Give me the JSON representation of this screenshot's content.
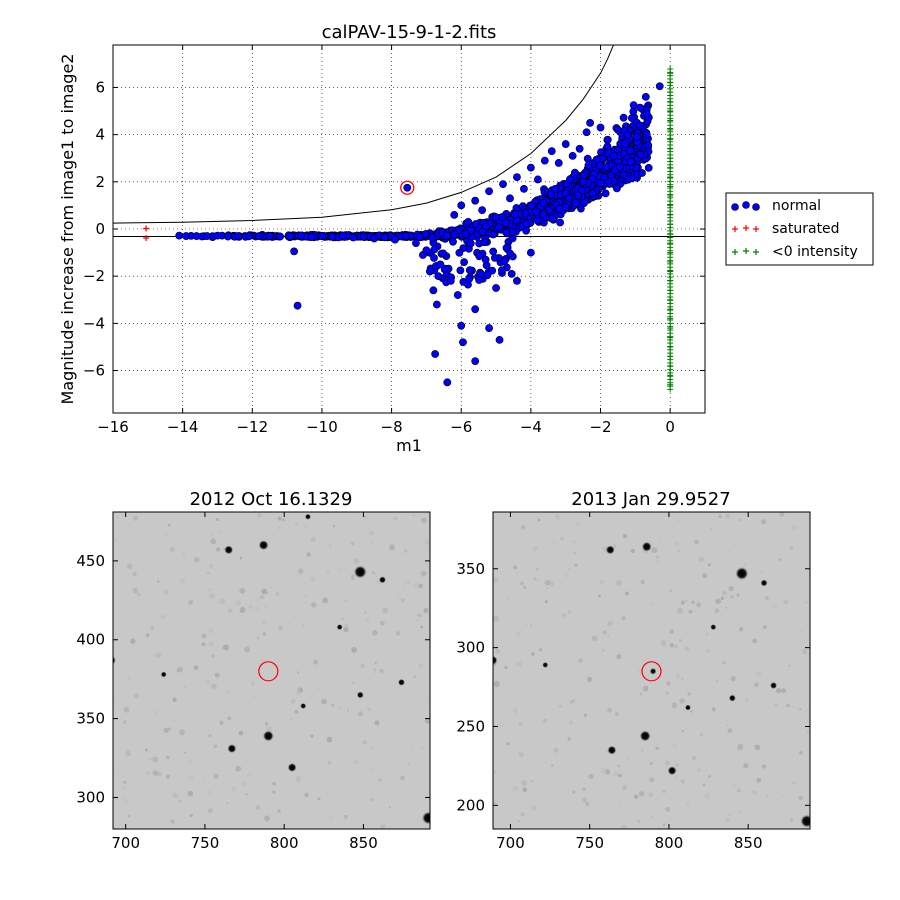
{
  "chart_data": [
    {
      "type": "scatter",
      "title": "calPAV-15-9-1-2.fits",
      "xlabel": "m1",
      "ylabel": "Magnitude increase from image1 to image2",
      "xlim": [
        -16,
        1
      ],
      "ylim": [
        -7.8,
        7.8
      ],
      "xticks": [
        -16,
        -14,
        -12,
        -10,
        -8,
        -6,
        -4,
        -2,
        0
      ],
      "yticks": [
        -6,
        -4,
        -2,
        0,
        2,
        4,
        6
      ],
      "xtick_labels": [
        "−16",
        "−14",
        "−12",
        "−10",
        "−8",
        "−6",
        "−4",
        "−2",
        "0"
      ],
      "ytick_labels": [
        "−6",
        "−4",
        "−2",
        "0",
        "2",
        "4",
        "6"
      ],
      "grid": true,
      "legend_placement": "outside-right",
      "series": [
        {
          "name": "normal",
          "marker": "filled-circle",
          "color": "#0000ff",
          "points": [
            [
              -14.1,
              -0.28
            ],
            [
              -13.9,
              -0.3
            ],
            [
              -13.6,
              -0.3
            ],
            [
              -13.3,
              -0.3
            ],
            [
              -13.0,
              -0.28
            ],
            [
              -12.7,
              -0.32
            ],
            [
              -12.4,
              -0.3
            ],
            [
              -12.1,
              -0.31
            ],
            [
              -11.8,
              -0.3
            ],
            [
              -11.5,
              -0.3
            ],
            [
              -11.2,
              -0.32
            ],
            [
              -10.9,
              -0.31
            ],
            [
              -10.6,
              -0.28
            ],
            [
              -10.3,
              -0.34
            ],
            [
              -10.0,
              -0.3
            ],
            [
              -9.7,
              -0.33
            ],
            [
              -9.4,
              -0.28
            ],
            [
              -9.1,
              -0.36
            ],
            [
              -8.8,
              -0.32
            ],
            [
              -8.5,
              -0.4
            ],
            [
              -8.2,
              -0.35
            ],
            [
              -7.9,
              -0.45
            ],
            [
              -7.6,
              -0.3
            ],
            [
              -10.8,
              -0.95
            ],
            [
              -10.7,
              -3.25
            ],
            [
              -7.55,
              1.75
            ],
            [
              -7.3,
              -0.6
            ],
            [
              -7.1,
              -1.1
            ],
            [
              -6.9,
              -1.8
            ],
            [
              -6.8,
              -2.6
            ],
            [
              -6.7,
              -3.2
            ],
            [
              -6.75,
              -5.3
            ],
            [
              -6.4,
              -6.5
            ],
            [
              -6.3,
              -2.2
            ],
            [
              -6.1,
              -2.8
            ],
            [
              -6.0,
              -4.1
            ],
            [
              -5.95,
              -4.8
            ],
            [
              -5.6,
              -5.6
            ],
            [
              -5.2,
              -4.2
            ],
            [
              -4.9,
              -4.7
            ],
            [
              -5.6,
              -3.4
            ],
            [
              -5.0,
              -2.5
            ],
            [
              -4.4,
              -2.2
            ],
            [
              -4.0,
              -1.0
            ],
            [
              -6.2,
              0.6
            ],
            [
              -6.0,
              1.0
            ],
            [
              -5.8,
              0.3
            ],
            [
              -5.6,
              1.2
            ],
            [
              -5.4,
              0.8
            ],
            [
              -5.2,
              1.6
            ],
            [
              -5.0,
              0.5
            ],
            [
              -4.8,
              1.9
            ],
            [
              -4.6,
              1.3
            ],
            [
              -4.4,
              2.2
            ],
            [
              -4.2,
              1.7
            ],
            [
              -4.0,
              2.6
            ],
            [
              -3.8,
              2.1
            ],
            [
              -3.6,
              2.9
            ],
            [
              -3.4,
              3.3
            ],
            [
              -3.2,
              2.8
            ],
            [
              -3.0,
              3.6
            ],
            [
              -2.8,
              3.1
            ],
            [
              -2.6,
              3.4
            ],
            [
              -2.4,
              4.1
            ],
            [
              -2.3,
              4.5
            ],
            [
              -2.0,
              4.3
            ],
            [
              -1.8,
              3.5
            ],
            [
              -1.5,
              4.2
            ],
            [
              -1.3,
              3.6
            ],
            [
              -1.1,
              4.7
            ],
            [
              -1.05,
              5.25
            ],
            [
              -0.7,
              5.6
            ],
            [
              -0.3,
              6.05
            ],
            [
              -0.85,
              3.15
            ],
            [
              -2.5,
              2.0
            ],
            [
              -2.9,
              1.3
            ],
            [
              -3.3,
              1.7
            ],
            [
              -5.3,
              -1.3
            ],
            [
              -4.7,
              -0.8
            ],
            [
              -6.6,
              -1.5
            ],
            [
              -7.0,
              -0.9
            ]
          ]
        },
        {
          "name": "saturated",
          "marker": "plus",
          "color": "#ff0000",
          "points": [
            [
              -15.05,
              0.02
            ],
            [
              -15.05,
              -0.38
            ]
          ]
        },
        {
          "name": "<0 intensity",
          "marker": "plus",
          "color": "#008000",
          "points": [
            [
              0,
              6.6
            ],
            [
              0,
              6.2
            ],
            [
              0,
              5.8
            ],
            [
              0,
              5.4
            ],
            [
              0,
              5.0
            ],
            [
              0,
              4.6
            ],
            [
              0,
              4.2
            ],
            [
              0,
              3.8
            ],
            [
              0,
              3.4
            ],
            [
              0,
              3.0
            ],
            [
              0,
              2.6
            ],
            [
              0,
              2.2
            ],
            [
              0,
              1.8
            ],
            [
              0,
              1.4
            ],
            [
              0,
              1.0
            ],
            [
              0,
              0.6
            ],
            [
              0,
              0.2
            ],
            [
              0,
              -0.2
            ],
            [
              0,
              -0.6
            ],
            [
              0,
              -1.0
            ],
            [
              0,
              -1.4
            ],
            [
              0,
              -1.8
            ],
            [
              0,
              -2.2
            ],
            [
              0,
              -2.6
            ],
            [
              0,
              -3.0
            ],
            [
              0,
              -3.4
            ],
            [
              0,
              -3.8
            ],
            [
              0,
              -4.2
            ],
            [
              0,
              -4.6
            ],
            [
              0,
              -5.0
            ],
            [
              0,
              -5.4
            ],
            [
              0,
              -5.8
            ],
            [
              0,
              -6.2
            ],
            [
              0,
              -6.6
            ]
          ]
        }
      ],
      "reference_lines": {
        "horizontal_y": -0.32,
        "curve": [
          [
            -16,
            0.25
          ],
          [
            -14,
            0.29
          ],
          [
            -12,
            0.36
          ],
          [
            -10,
            0.5
          ],
          [
            -8,
            0.82
          ],
          [
            -7,
            1.1
          ],
          [
            -6,
            1.55
          ],
          [
            -5,
            2.2
          ],
          [
            -4,
            3.2
          ],
          [
            -3,
            4.6
          ],
          [
            -2.5,
            5.5
          ],
          [
            -2,
            6.6
          ],
          [
            -1.8,
            7.2
          ],
          [
            -1.6,
            7.9
          ]
        ]
      },
      "highlight": {
        "x": -7.55,
        "y": 1.75,
        "color": "#ff0000"
      }
    },
    {
      "type": "heatmap",
      "title": "2012 Oct 16.1329",
      "xlim": [
        692,
        892
      ],
      "ylim": [
        280,
        481
      ],
      "xticks": [
        700,
        750,
        800,
        850
      ],
      "yticks": [
        300,
        350,
        400,
        450
      ],
      "stars": [
        [
          765,
          457,
          3
        ],
        [
          787,
          460,
          3.5
        ],
        [
          848,
          443,
          5
        ],
        [
          862,
          438,
          2
        ],
        [
          691,
          387,
          3
        ],
        [
          790,
          339,
          4
        ],
        [
          767,
          331,
          3
        ],
        [
          805,
          319,
          3
        ],
        [
          848,
          365,
          2
        ],
        [
          874,
          373,
          2
        ],
        [
          891,
          287,
          5
        ],
        [
          835,
          408,
          1.5
        ],
        [
          812,
          358,
          1.5
        ],
        [
          724,
          378,
          1.5
        ],
        [
          815,
          478,
          1.5
        ]
      ],
      "circle": {
        "x": 790,
        "y": 380,
        "color": "#ff0000"
      }
    },
    {
      "type": "heatmap",
      "title": "2013 Jan 29.9527",
      "xlim": [
        689,
        889
      ],
      "ylim": [
        185,
        386
      ],
      "xticks": [
        700,
        750,
        800,
        850
      ],
      "yticks": [
        200,
        250,
        300,
        350
      ],
      "stars": [
        [
          763,
          362,
          3
        ],
        [
          786,
          364,
          3.5
        ],
        [
          846,
          347,
          5
        ],
        [
          860,
          341,
          2
        ],
        [
          689,
          292,
          3
        ],
        [
          785,
          244,
          4
        ],
        [
          764,
          235,
          3
        ],
        [
          802,
          222,
          3
        ],
        [
          840,
          268,
          2
        ],
        [
          866,
          276,
          2
        ],
        [
          887,
          190,
          5
        ],
        [
          828,
          313,
          1.5
        ],
        [
          812,
          262,
          1.5
        ],
        [
          790,
          285,
          1.8
        ],
        [
          722,
          289,
          1.5
        ]
      ],
      "circle": {
        "x": 789,
        "y": 285,
        "color": "#ff0000"
      }
    }
  ],
  "legend": {
    "items": [
      {
        "label": "normal",
        "color": "#0000ff",
        "marker": "filled-circle"
      },
      {
        "label": "saturated",
        "color": "#ff0000",
        "marker": "plus"
      },
      {
        "label": "<0 intensity",
        "color": "#008000",
        "marker": "plus"
      }
    ]
  }
}
